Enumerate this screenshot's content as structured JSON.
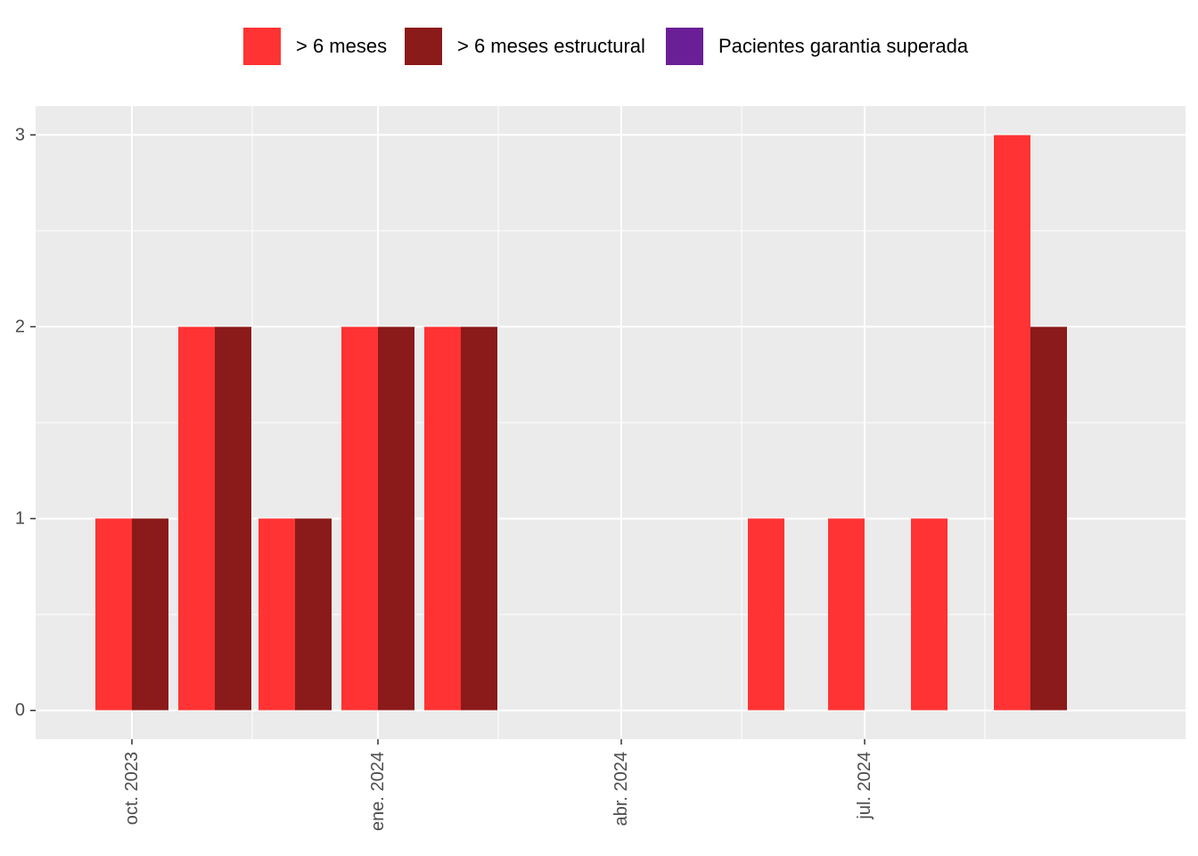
{
  "chart_data": {
    "type": "bar",
    "title": "",
    "xlabel": "",
    "ylabel": "",
    "ylim": [
      -0.15,
      3.15
    ],
    "y_ticks": [
      0,
      1,
      2,
      3
    ],
    "x_axis": {
      "kind": "date",
      "range": [
        "2023-08-26",
        "2024-10-29"
      ],
      "major_ticks": [
        {
          "date": "2023-10-01",
          "label": "oct. 2023"
        },
        {
          "date": "2024-01-01",
          "label": "ene. 2024"
        },
        {
          "date": "2024-04-01",
          "label": "abr. 2024"
        },
        {
          "date": "2024-07-01",
          "label": "jul. 2024"
        }
      ],
      "minor_gridlines": [
        "2023-11-15",
        "2024-02-15",
        "2024-05-16",
        "2024-08-15"
      ],
      "label_rotation": "vertical"
    },
    "bar_groups": [
      {
        "date": "2023-10-01",
        "values": [
          1,
          1
        ]
      },
      {
        "date": "2023-11-01",
        "values": [
          2,
          2
        ]
      },
      {
        "date": "2023-12-01",
        "values": [
          1,
          1
        ]
      },
      {
        "date": "2024-01-01",
        "values": [
          2,
          2
        ]
      },
      {
        "date": "2024-02-01",
        "values": [
          2,
          2
        ]
      },
      {
        "date": "2024-06-01",
        "values": [
          1,
          0
        ]
      },
      {
        "date": "2024-07-01",
        "values": [
          1,
          0
        ]
      },
      {
        "date": "2024-08-01",
        "values": [
          1,
          0
        ]
      },
      {
        "date": "2024-09-01",
        "values": [
          3,
          2
        ]
      }
    ],
    "series": [
      {
        "name": "> 6 meses",
        "color": "#FF3333"
      },
      {
        "name": "> 6 meses estructural",
        "color": "#8B1A1A"
      },
      {
        "name": "Pacientes garantia superada",
        "color": "#6A1F96"
      }
    ],
    "grid": true,
    "legend_position": "top"
  }
}
